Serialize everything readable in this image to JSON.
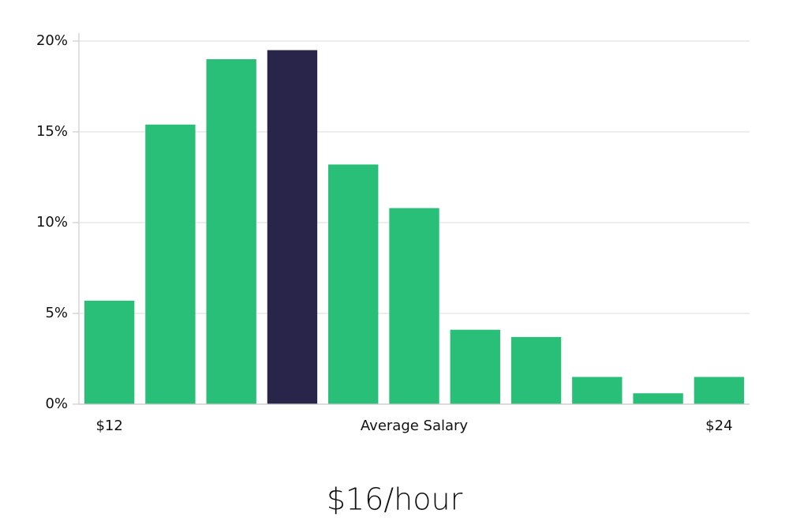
{
  "chart_data": {
    "type": "bar",
    "categories": [
      "$12",
      null,
      null,
      null,
      null,
      null,
      null,
      null,
      null,
      null,
      "$24"
    ],
    "values": [
      5.7,
      15.4,
      19.0,
      19.5,
      13.2,
      10.8,
      4.1,
      3.7,
      1.5,
      0.6,
      1.5
    ],
    "colors": [
      "#2abf78",
      "#2abf78",
      "#2abf78",
      "#29254a",
      "#2abf78",
      "#2abf78",
      "#2abf78",
      "#2abf78",
      "#2abf78",
      "#2abf78",
      "#2abf78"
    ],
    "x_label": "Average Salary",
    "annotation": "$16/hour",
    "ylim": [
      0,
      20
    ],
    "yticks": [
      {
        "value": 0,
        "label": "0%"
      },
      {
        "value": 5,
        "label": "5%"
      },
      {
        "value": 10,
        "label": "10%"
      },
      {
        "value": 15,
        "label": "15%"
      },
      {
        "value": 20,
        "label": "20%"
      }
    ],
    "grid": true
  }
}
